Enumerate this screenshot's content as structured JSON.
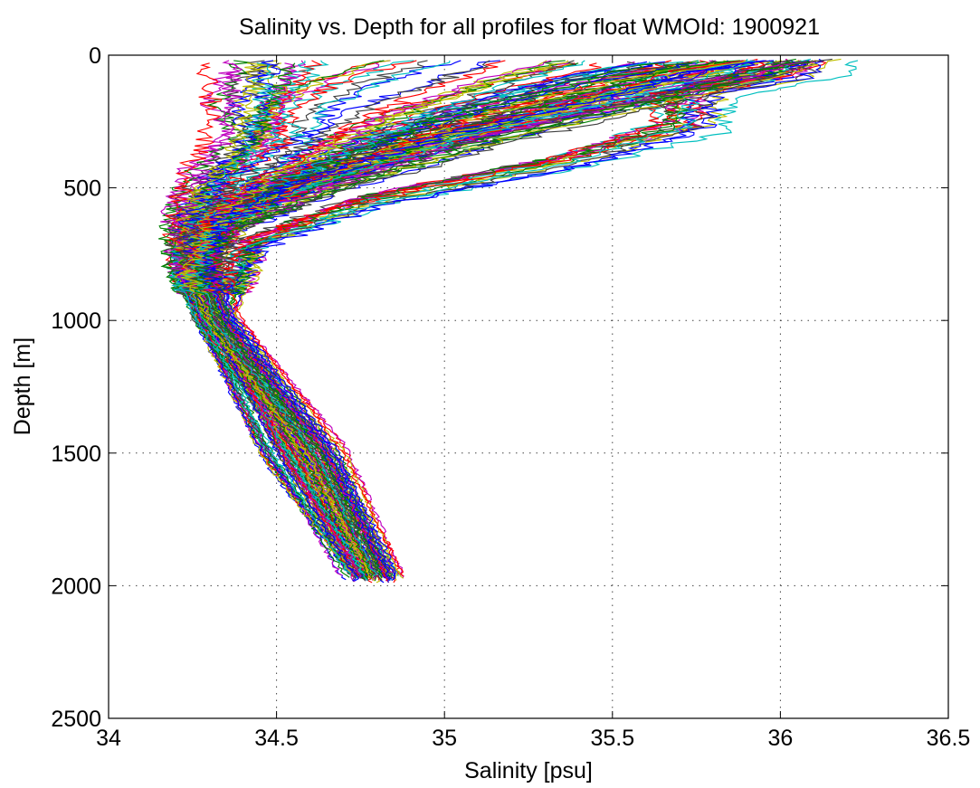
{
  "chart_data": {
    "type": "line",
    "title": "Salinity vs. Depth for all profiles for float WMOId: 1900921",
    "xlabel": "Salinity [psu]",
    "ylabel": "Depth [m]",
    "xlim": [
      34,
      36.5
    ],
    "ylim": [
      0,
      2500
    ],
    "y_reversed": true,
    "grid": true,
    "x_ticks": [
      "34",
      "34.5",
      "35",
      "35.5",
      "36",
      "36.5"
    ],
    "y_ticks": [
      "0",
      "500",
      "1000",
      "1500",
      "2000",
      "2500"
    ],
    "series_colors": [
      "#0000ff",
      "#008000",
      "#ff0000",
      "#00bfbf",
      "#bf00bf",
      "#bfbf00",
      "#404040"
    ],
    "series": [
      {
        "x": [
          35.95,
          35.9,
          35.6,
          35.1,
          34.6,
          34.32,
          34.27,
          34.33,
          34.6,
          34.84
        ],
        "y": [
          20,
          60,
          150,
          300,
          500,
          650,
          800,
          1000,
          1500,
          1990
        ]
      },
      {
        "x": [
          36.1,
          36.05,
          35.75,
          35.75,
          35.4,
          34.8,
          34.45,
          34.35,
          34.68,
          34.85
        ],
        "y": [
          20,
          80,
          150,
          280,
          400,
          550,
          700,
          1000,
          1500,
          1985
        ]
      },
      {
        "x": [
          36.02,
          35.95,
          35.7,
          35.7,
          35.35,
          34.75,
          34.4,
          34.32,
          34.62,
          34.8
        ],
        "y": [
          15,
          90,
          140,
          250,
          390,
          550,
          720,
          1000,
          1500,
          1975
        ]
      },
      {
        "x": [
          35.9,
          35.85,
          35.5,
          35.05,
          34.55,
          34.35,
          34.28,
          34.3,
          34.58,
          34.78
        ],
        "y": [
          20,
          70,
          150,
          300,
          500,
          620,
          800,
          1000,
          1500,
          1990
        ]
      },
      {
        "x": [
          35.85,
          35.7,
          35.4,
          34.95,
          34.5,
          34.3,
          34.26,
          34.31,
          34.55,
          34.75
        ],
        "y": [
          20,
          70,
          180,
          320,
          520,
          640,
          820,
          1000,
          1500,
          1980
        ]
      },
      {
        "x": [
          35.8,
          35.6,
          35.25,
          34.85,
          34.45,
          34.28,
          34.25,
          34.3,
          34.52,
          34.74
        ],
        "y": [
          25,
          90,
          200,
          340,
          530,
          660,
          840,
          1000,
          1500,
          1985
        ]
      },
      {
        "x": [
          35.7,
          35.4,
          35.1,
          34.8,
          34.42,
          34.26,
          34.24,
          34.3,
          34.5,
          34.76
        ],
        "y": [
          25,
          100,
          210,
          350,
          540,
          670,
          850,
          1000,
          1500,
          1990
        ]
      },
      {
        "x": [
          35.6,
          35.3,
          35.0,
          34.7,
          34.4,
          34.25,
          34.25,
          34.29,
          34.48,
          34.77
        ],
        "y": [
          30,
          110,
          220,
          360,
          540,
          680,
          860,
          1000,
          1500,
          1985
        ]
      },
      {
        "x": [
          35.5,
          35.2,
          34.9,
          34.65,
          34.38,
          34.24,
          34.24,
          34.3,
          34.6,
          34.79
        ],
        "y": [
          30,
          120,
          230,
          370,
          550,
          690,
          860,
          1000,
          1500,
          1990
        ]
      },
      {
        "x": [
          34.9,
          34.7,
          34.55,
          34.5,
          34.35,
          34.24,
          34.22,
          34.28,
          34.56,
          34.8
        ],
        "y": [
          20,
          100,
          200,
          350,
          500,
          650,
          800,
          1000,
          1500,
          1995
        ]
      },
      {
        "x": [
          34.5,
          34.45,
          34.4,
          34.45,
          34.3,
          34.22,
          34.21,
          34.3,
          34.5,
          34.74
        ],
        "y": [
          20,
          100,
          200,
          300,
          450,
          600,
          800,
          1000,
          1500,
          1980
        ]
      },
      {
        "x": [
          34.4,
          34.4,
          34.38,
          34.35,
          34.27,
          34.22,
          34.24,
          34.32,
          34.6,
          34.81
        ],
        "y": [
          30,
          100,
          250,
          350,
          470,
          620,
          780,
          1000,
          1500,
          1990
        ]
      },
      {
        "x": [
          35.3,
          35.1,
          34.85,
          34.65,
          34.42,
          34.28,
          34.27,
          34.34,
          34.64,
          34.83
        ],
        "y": [
          20,
          100,
          220,
          350,
          500,
          650,
          800,
          1000,
          1500,
          1995
        ]
      },
      {
        "x": [
          35.98,
          35.92,
          35.65,
          35.15,
          34.62,
          34.36,
          34.3,
          34.36,
          34.66,
          34.85
        ],
        "y": [
          20,
          60,
          150,
          300,
          500,
          640,
          800,
          1000,
          1500,
          1985
        ]
      },
      {
        "x": [
          36.0,
          35.8,
          35.5,
          35.0,
          34.58,
          34.34,
          34.28,
          34.33,
          34.63,
          34.82
        ],
        "y": [
          20,
          60,
          170,
          320,
          510,
          650,
          820,
          1000,
          1500,
          1990
        ]
      }
    ]
  }
}
